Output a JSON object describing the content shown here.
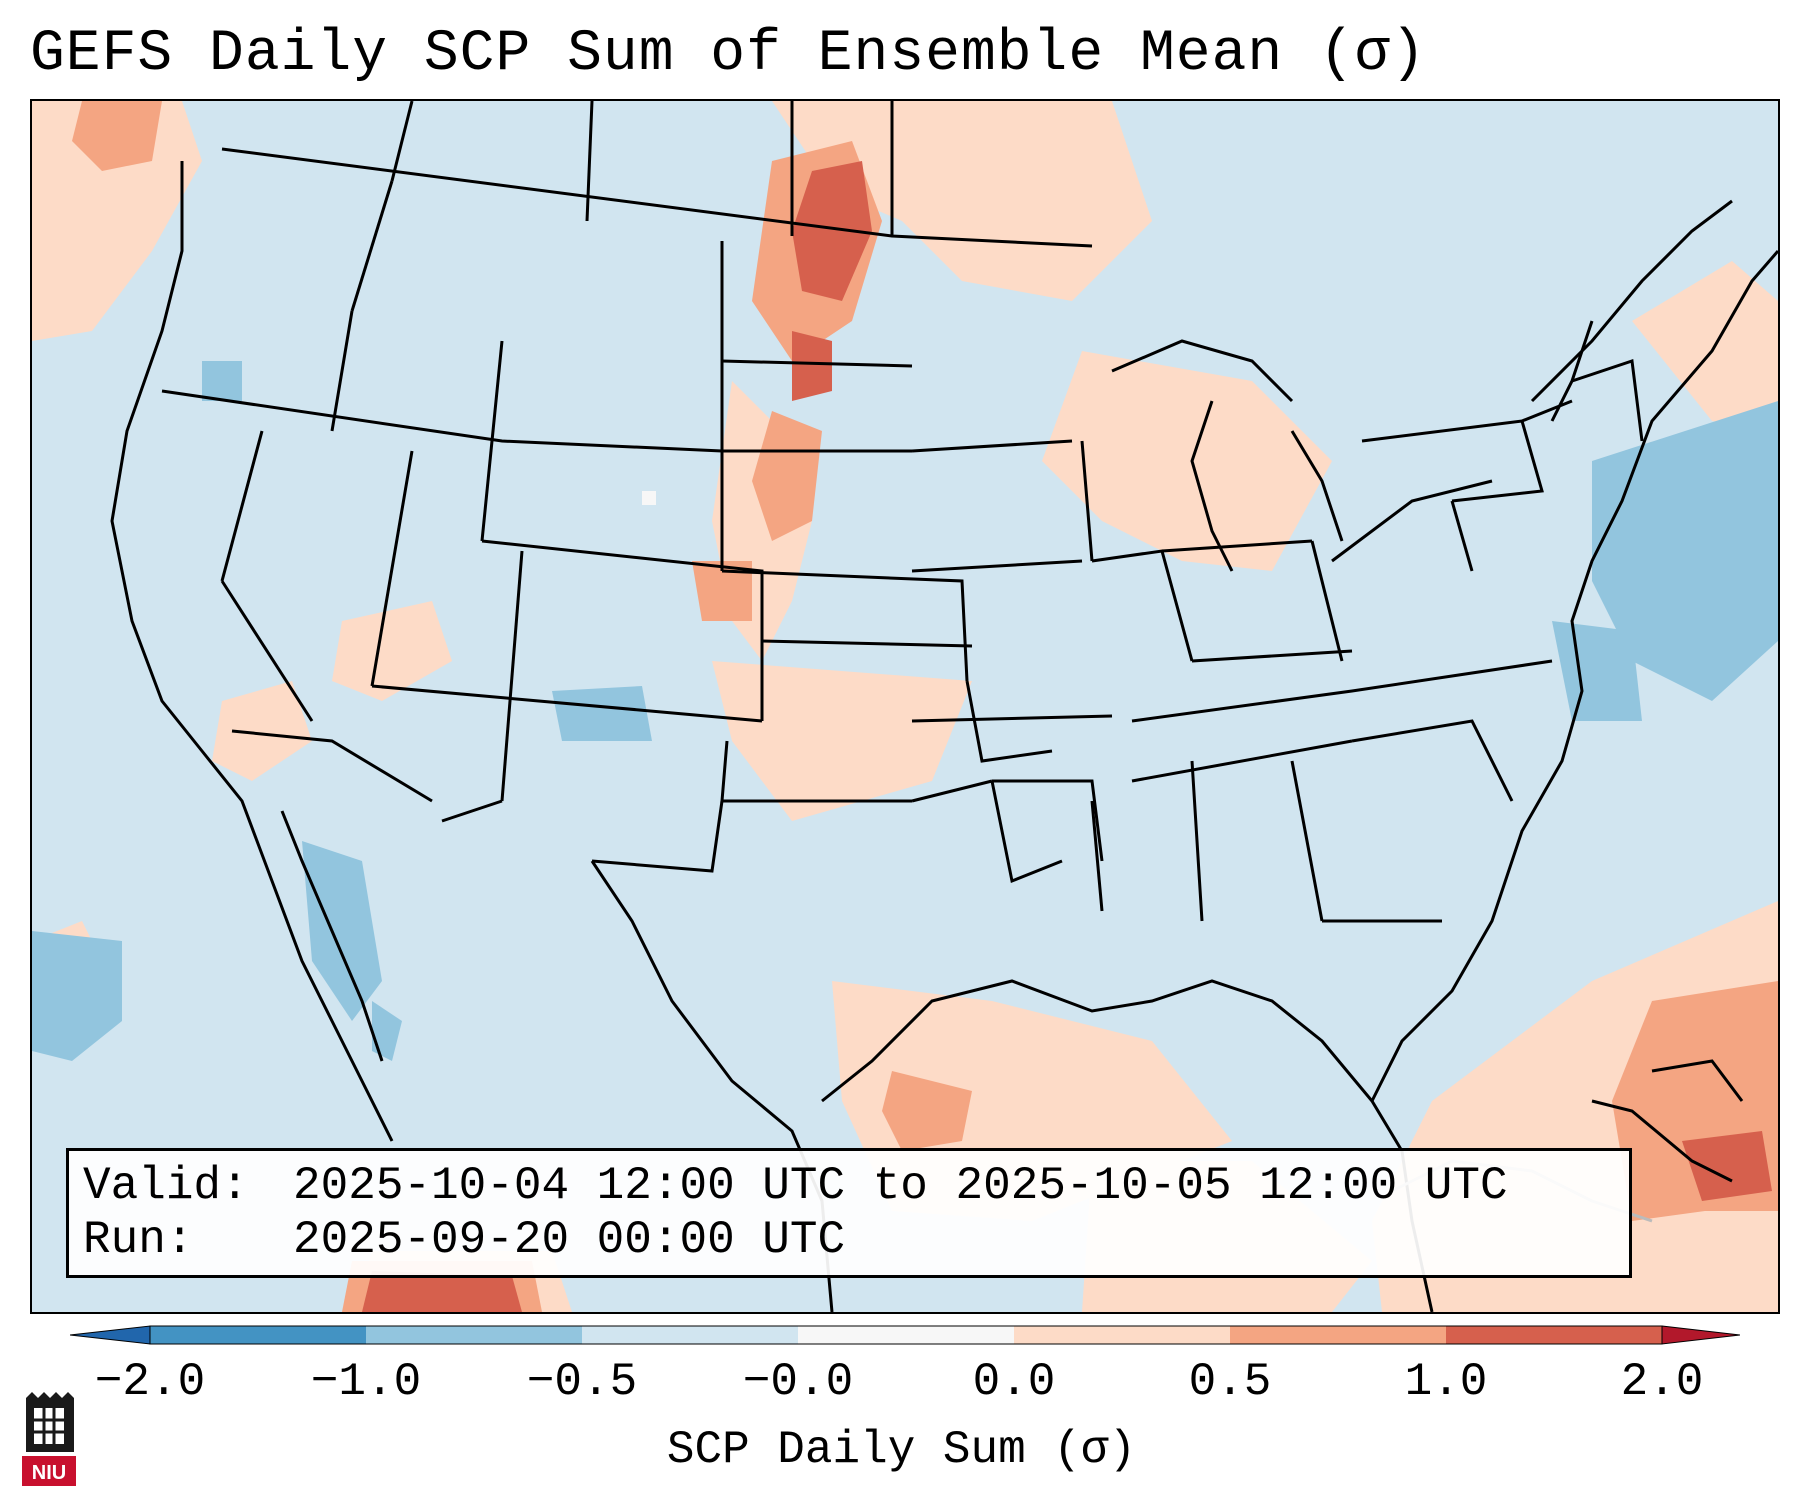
{
  "title": "GEFS Daily SCP Sum of Ensemble Mean (σ)",
  "info": {
    "valid_label": "Valid:",
    "valid_value": "2025-10-04 12:00 UTC to 2025-10-05 12:00 UTC",
    "run_label": "Run:",
    "run_value": "2025-09-20 00:00 UTC"
  },
  "colorbar": {
    "label": "SCP Daily Sum (σ)",
    "tick_labels": [
      "−2.0",
      "−1.0",
      "−0.5",
      "−0.0",
      "0.0",
      "0.5",
      "1.0",
      "2.0"
    ],
    "colors": [
      "#4393c3",
      "#92c5de",
      "#d1e5f0",
      "#f7f7f7",
      "#fddbc7",
      "#f4a582",
      "#d6604d"
    ],
    "extend_low": "#2166ac",
    "extend_high": "#b2182b"
  },
  "logo": {
    "icon": "niu-logo-icon",
    "text": "NIU"
  }
}
